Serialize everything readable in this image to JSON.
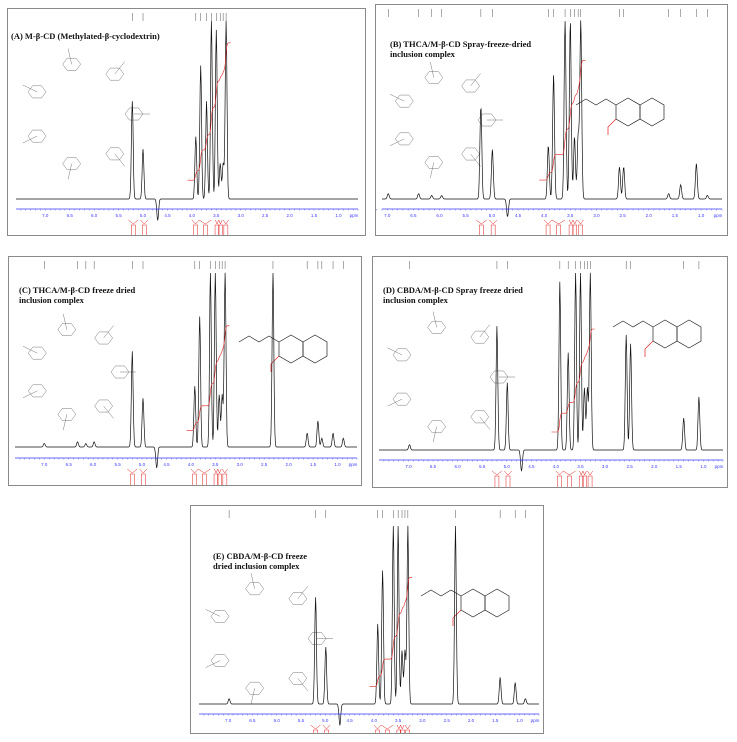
{
  "chart_data": [
    {
      "type": "line",
      "id": "A",
      "title": "(A) M-β-CD (Methylated-β-cyclodextrin)",
      "xlabel": "ppm",
      "xlim": [
        7.6,
        0.6
      ],
      "x_ticks": [
        "7.0",
        "6.5",
        "6.0",
        "5.5",
        "5.0",
        "4.5",
        "4.0",
        "3.5",
        "3.0",
        "2.5",
        "2.0",
        "1.5",
        "1.0"
      ],
      "structures": [
        "methylated-beta-cyclodextrin"
      ],
      "peaks": [
        {
          "ppm": 5.22,
          "height": 0.55
        },
        {
          "ppm": 5.0,
          "height": 0.28
        },
        {
          "ppm": 4.7,
          "height": -0.12
        },
        {
          "ppm": 3.92,
          "height": 0.35
        },
        {
          "ppm": 3.82,
          "height": 0.75
        },
        {
          "ppm": 3.7,
          "height": 0.55
        },
        {
          "ppm": 3.6,
          "height": 1.0
        },
        {
          "ppm": 3.5,
          "height": 0.95
        },
        {
          "ppm": 3.42,
          "height": 0.2
        },
        {
          "ppm": 3.36,
          "height": 0.2
        },
        {
          "ppm": 3.3,
          "height": 1.0
        }
      ],
      "integration_regions_ppm": [
        [
          5.3,
          5.1
        ],
        [
          5.05,
          4.9
        ],
        [
          4.0,
          3.85
        ],
        [
          3.85,
          3.6
        ],
        [
          3.52,
          3.45
        ],
        [
          3.45,
          3.38
        ],
        [
          3.36,
          3.25
        ]
      ]
    },
    {
      "type": "line",
      "id": "B",
      "title": "(B) THCA/M-β-CD Spray-freeze-dried\ninclusion complex",
      "xlabel": "ppm",
      "xlim": [
        7.1,
        0.6
      ],
      "x_ticks": [
        "7.0",
        "6.5",
        "6.0",
        "5.5",
        "5.0",
        "4.5",
        "4.0",
        "3.5",
        "3.0",
        "2.5",
        "2.0",
        "1.5",
        "1.0"
      ],
      "structures": [
        "methylated-beta-cyclodextrin",
        "THCA"
      ],
      "peaks": [
        {
          "ppm": 6.98,
          "height": 0.03
        },
        {
          "ppm": 6.4,
          "height": 0.03
        },
        {
          "ppm": 6.15,
          "height": 0.02
        },
        {
          "ppm": 5.96,
          "height": 0.02
        },
        {
          "ppm": 5.21,
          "height": 0.52
        },
        {
          "ppm": 4.99,
          "height": 0.28
        },
        {
          "ppm": 4.7,
          "height": -0.1
        },
        {
          "ppm": 3.92,
          "height": 0.3
        },
        {
          "ppm": 3.82,
          "height": 0.7
        },
        {
          "ppm": 3.6,
          "height": 1.0
        },
        {
          "ppm": 3.5,
          "height": 1.0
        },
        {
          "ppm": 3.42,
          "height": 0.35
        },
        {
          "ppm": 3.35,
          "height": 0.35
        },
        {
          "ppm": 3.3,
          "height": 1.0
        },
        {
          "ppm": 2.56,
          "height": 0.18
        },
        {
          "ppm": 2.48,
          "height": 0.18
        },
        {
          "ppm": 1.62,
          "height": 0.03
        },
        {
          "ppm": 1.39,
          "height": 0.08
        },
        {
          "ppm": 1.09,
          "height": 0.2
        },
        {
          "ppm": 0.88,
          "height": 0.02
        }
      ]
    },
    {
      "type": "line",
      "id": "C",
      "title": "(C) THCA/M-β-CD freeze dried\ninclusion complex",
      "xlabel": "ppm",
      "xlim": [
        7.6,
        0.6
      ],
      "x_ticks": [
        "7.0",
        "6.5",
        "6.0",
        "5.5",
        "5.0",
        "4.5",
        "4.0",
        "3.5",
        "3.0",
        "2.5",
        "2.0",
        "1.5",
        "1.0"
      ],
      "structures": [
        "methylated-beta-cyclodextrin",
        "THCA"
      ],
      "peaks": [
        {
          "ppm": 7.0,
          "height": 0.02
        },
        {
          "ppm": 6.32,
          "height": 0.03
        },
        {
          "ppm": 6.15,
          "height": 0.02
        },
        {
          "ppm": 5.98,
          "height": 0.03
        },
        {
          "ppm": 5.2,
          "height": 0.55
        },
        {
          "ppm": 4.98,
          "height": 0.28
        },
        {
          "ppm": 4.7,
          "height": -0.12
        },
        {
          "ppm": 3.92,
          "height": 0.35
        },
        {
          "ppm": 3.82,
          "height": 0.75
        },
        {
          "ppm": 3.6,
          "height": 1.0
        },
        {
          "ppm": 3.5,
          "height": 1.0
        },
        {
          "ppm": 3.42,
          "height": 0.3
        },
        {
          "ppm": 3.36,
          "height": 0.3
        },
        {
          "ppm": 3.3,
          "height": 1.0
        },
        {
          "ppm": 2.32,
          "height": 1.0
        },
        {
          "ppm": 1.62,
          "height": 0.08
        },
        {
          "ppm": 1.4,
          "height": 0.15
        },
        {
          "ppm": 1.32,
          "height": 0.05
        },
        {
          "ppm": 1.09,
          "height": 0.08
        },
        {
          "ppm": 0.88,
          "height": 0.05
        }
      ]
    },
    {
      "type": "line",
      "id": "D",
      "title": "(D) CBDA/M-β-CD Spray freeze dried\ninclusion complex",
      "xlabel": "ppm",
      "xlim": [
        7.6,
        0.6
      ],
      "x_ticks": [
        "7.0",
        "6.5",
        "6.0",
        "5.5",
        "5.0",
        "4.5",
        "4.0",
        "3.5",
        "3.0",
        "2.5",
        "2.0",
        "1.5",
        "1.0"
      ],
      "structures": [
        "methylated-beta-cyclodextrin",
        "CBDA"
      ],
      "peaks": [
        {
          "ppm": 6.98,
          "height": 0.03
        },
        {
          "ppm": 5.2,
          "height": 0.7
        },
        {
          "ppm": 4.99,
          "height": 0.38
        },
        {
          "ppm": 4.7,
          "height": -0.12
        },
        {
          "ppm": 3.92,
          "height": 0.95
        },
        {
          "ppm": 3.75,
          "height": 0.55
        },
        {
          "ppm": 3.6,
          "height": 1.0
        },
        {
          "ppm": 3.5,
          "height": 1.0
        },
        {
          "ppm": 3.42,
          "height": 0.35
        },
        {
          "ppm": 3.36,
          "height": 0.35
        },
        {
          "ppm": 3.3,
          "height": 1.0
        },
        {
          "ppm": 2.57,
          "height": 0.65
        },
        {
          "ppm": 2.48,
          "height": 0.6
        },
        {
          "ppm": 1.4,
          "height": 0.18
        },
        {
          "ppm": 1.09,
          "height": 0.3
        }
      ]
    },
    {
      "type": "line",
      "id": "E",
      "title": "(E) CBDA/M-β-CD  freeze\ndried inclusion complex",
      "xlabel": "ppm",
      "xlim": [
        7.6,
        0.6
      ],
      "x_ticks": [
        "7.0",
        "6.5",
        "6.0",
        "5.5",
        "5.0",
        "4.5",
        "4.0",
        "3.5",
        "3.0",
        "2.5",
        "2.0",
        "1.5",
        "1.0"
      ],
      "structures": [
        "methylated-beta-cyclodextrin",
        "CBDA"
      ],
      "peaks": [
        {
          "ppm": 6.98,
          "height": 0.03
        },
        {
          "ppm": 5.2,
          "height": 0.6
        },
        {
          "ppm": 4.99,
          "height": 0.32
        },
        {
          "ppm": 4.7,
          "height": -0.12
        },
        {
          "ppm": 3.92,
          "height": 0.45
        },
        {
          "ppm": 3.82,
          "height": 0.75
        },
        {
          "ppm": 3.6,
          "height": 1.0
        },
        {
          "ppm": 3.5,
          "height": 1.0
        },
        {
          "ppm": 3.42,
          "height": 0.3
        },
        {
          "ppm": 3.36,
          "height": 0.3
        },
        {
          "ppm": 3.3,
          "height": 1.0
        },
        {
          "ppm": 2.32,
          "height": 1.0
        },
        {
          "ppm": 1.4,
          "height": 0.15
        },
        {
          "ppm": 1.09,
          "height": 0.12
        },
        {
          "ppm": 0.88,
          "height": 0.03
        }
      ]
    }
  ],
  "panels": {
    "A": {
      "title": "(A) M-β-CD (Methylated-β-cyclodextrin)"
    },
    "B": {
      "title": "(B) THCA/M-β-CD  Spray-freeze-dried\ninclusion complex"
    },
    "C": {
      "title": "(C) THCA/M-β-CD freeze dried\ninclusion complex"
    },
    "D": {
      "title": "(D) CBDA/M-β-CD Spray freeze dried\ninclusion complex"
    },
    "E": {
      "title": "(E)  CBDA/M-β-CD  freeze\ndried inclusion complex"
    }
  },
  "axis": {
    "unit": "ppm"
  },
  "colors": {
    "spectrum": "#111111",
    "integral": "#e02020",
    "axis": "#3a3aff",
    "frame": "#8a8a8a",
    "structure_acid": "#e02020"
  }
}
